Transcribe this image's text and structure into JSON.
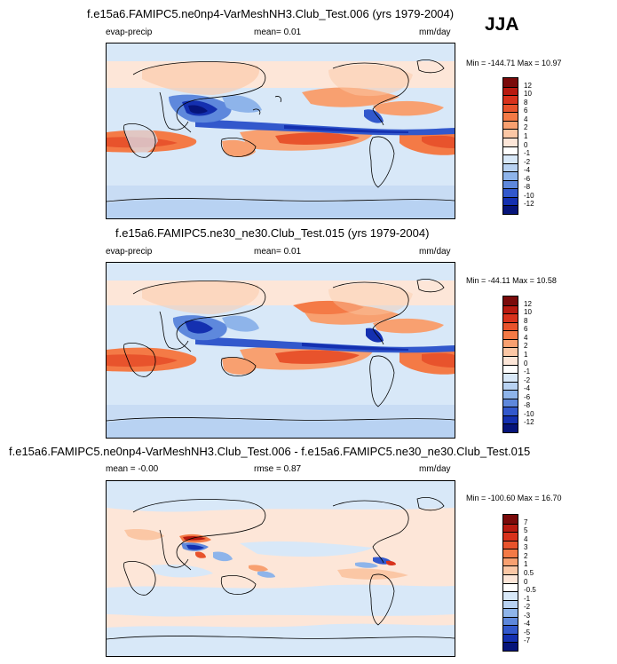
{
  "season": "JJA",
  "panels": [
    {
      "id": "top",
      "title": "f.e15a6.FAMIPC5.ne0np4-VarMeshNH3.Club_Test.006 (yrs 1979-2004)",
      "left_label": "evap-precip",
      "center_label": "mean=  0.01",
      "units": "mm/day",
      "stats": "Min = -144.71 Max =  10.97",
      "colorbar_levels": [
        "12",
        "10",
        "8",
        "6",
        "4",
        "2",
        "1",
        "0",
        "-1",
        "-2",
        "-4",
        "-6",
        "-8",
        "-10",
        "-12"
      ],
      "colorbar_colors": [
        "#7a0a0a",
        "#b81a10",
        "#d8321c",
        "#e8532c",
        "#f47a46",
        "#f8a070",
        "#fbc7a5",
        "#fde6d8",
        "#ffffff",
        "#d8e8f8",
        "#b8d2f2",
        "#8eb4ea",
        "#5e88dc",
        "#3258cc",
        "#1430b0",
        "#06147a"
      ]
    },
    {
      "id": "middle",
      "title": "f.e15a6.FAMIPC5.ne30_ne30.Club_Test.015 (yrs 1979-2004)",
      "left_label": "evap-precip",
      "center_label": "mean=  0.01",
      "units": "mm/day",
      "stats": "Min = -44.11 Max =  10.58",
      "colorbar_levels": [
        "12",
        "10",
        "8",
        "6",
        "4",
        "2",
        "1",
        "0",
        "-1",
        "-2",
        "-4",
        "-6",
        "-8",
        "-10",
        "-12"
      ],
      "colorbar_colors": [
        "#7a0a0a",
        "#b81a10",
        "#d8321c",
        "#e8532c",
        "#f47a46",
        "#f8a070",
        "#fbc7a5",
        "#fde6d8",
        "#ffffff",
        "#d8e8f8",
        "#b8d2f2",
        "#8eb4ea",
        "#5e88dc",
        "#3258cc",
        "#1430b0",
        "#06147a"
      ]
    },
    {
      "id": "bottom",
      "title": "f.e15a6.FAMIPC5.ne0np4-VarMeshNH3.Club_Test.006 - f.e15a6.FAMIPC5.ne30_ne30.Club_Test.015",
      "left_label": "mean = -0.00",
      "center_label": "rmse =  0.87",
      "units": "mm/day",
      "stats": "Min = -100.60 Max =  16.70",
      "colorbar_levels": [
        "7",
        "5",
        "4",
        "3",
        "2",
        "1",
        "0.5",
        "0",
        "-0.5",
        "-1",
        "-2",
        "-3",
        "-4",
        "-5",
        "-7"
      ],
      "colorbar_colors": [
        "#7a0a0a",
        "#b81a10",
        "#d8321c",
        "#e8532c",
        "#f47a46",
        "#f8a070",
        "#fbc7a5",
        "#fde6d8",
        "#ffffff",
        "#d8e8f8",
        "#b8d2f2",
        "#8eb4ea",
        "#5e88dc",
        "#3258cc",
        "#1430b0",
        "#06147a"
      ]
    }
  ],
  "chart_data": {
    "type": "heatmap",
    "variable": "evap-precip",
    "units": "mm/day",
    "season": "JJA",
    "maps": [
      {
        "title": "f.e15a6.FAMIPC5.ne0np4-VarMeshNH3.Club_Test.006 (yrs 1979-2004)",
        "mean": 0.01,
        "min": -144.71,
        "max": 10.97
      },
      {
        "title": "f.e15a6.FAMIPC5.ne30_ne30.Club_Test.015 (yrs 1979-2004)",
        "mean": 0.01,
        "min": -44.11,
        "max": 10.58
      },
      {
        "title": "f.e15a6.FAMIPC5.ne0np4-VarMeshNH3.Club_Test.006 - f.e15a6.FAMIPC5.ne30_ne30.Club_Test.015",
        "mean": -0.0,
        "rmse": 0.87,
        "min": -100.6,
        "max": 16.7
      }
    ]
  }
}
